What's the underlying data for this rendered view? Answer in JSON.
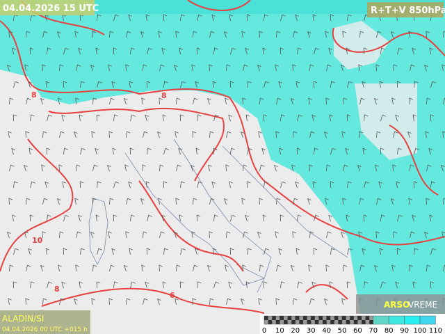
{
  "header": {
    "valid_time": "04.04.2026 15 UTC",
    "product": "R+T+V 850hPa"
  },
  "footer": {
    "model": "ALADIN/SI",
    "run": "04.04.2026 00 UTC +015 h",
    "brand": "ARSO",
    "brand_suffix": "VREME"
  },
  "contour_labels": [
    "8",
    "8",
    "10",
    "8",
    "6"
  ],
  "colorbar": {
    "ticks": [
      0,
      10,
      20,
      30,
      40,
      50,
      60,
      70,
      80,
      90,
      100,
      110
    ],
    "colors": [
      "#9a9a9a",
      "#9a9a9a",
      "#9a9a9a",
      "#9a9a9a",
      "#9a9a9a",
      "#9a9a9a",
      "#9a9a9a",
      "#5fd8c8",
      "#3fe8e0",
      "#28f0f0",
      "#40d8f0"
    ]
  }
}
